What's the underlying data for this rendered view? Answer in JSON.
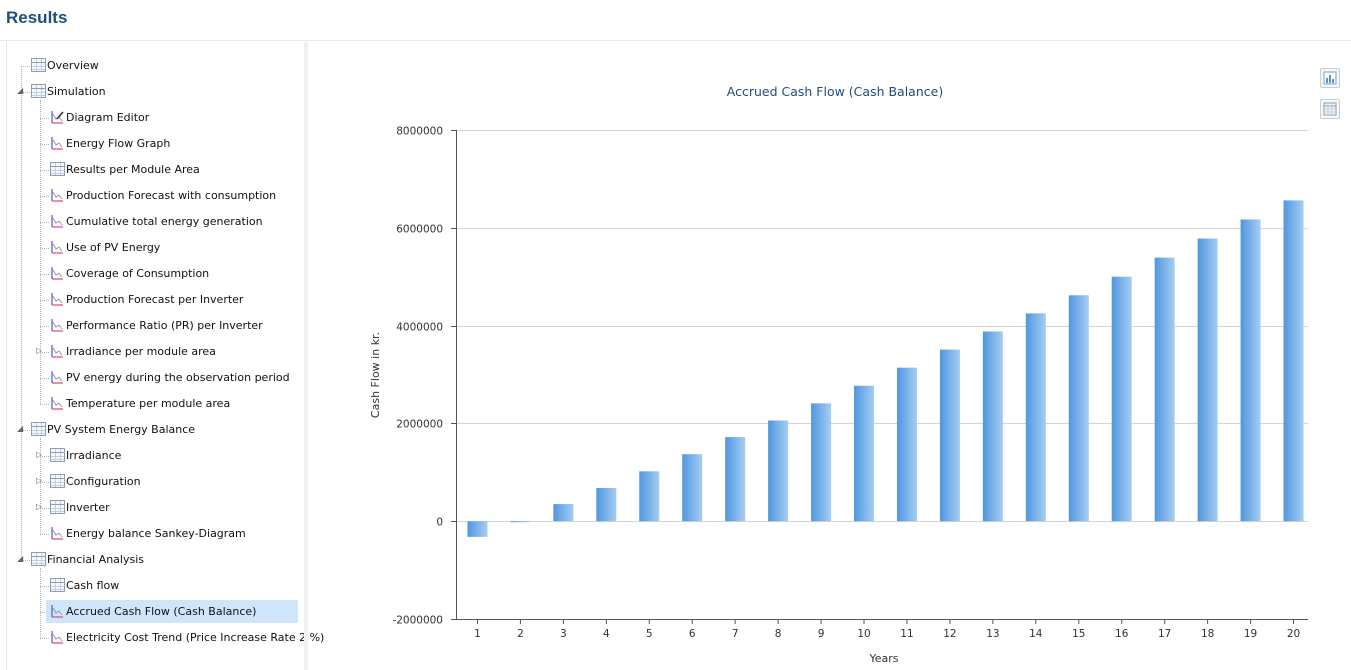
{
  "header": {
    "title": "Results"
  },
  "tree": {
    "items": [
      {
        "label": "Overview",
        "level": 0,
        "icon": "table",
        "expander": "",
        "lineStart": true
      },
      {
        "label": "Simulation",
        "level": 0,
        "icon": "table",
        "expander": "expanded"
      },
      {
        "label": "Diagram Editor",
        "level": 1,
        "icon": "chart-edit",
        "expander": ""
      },
      {
        "label": "Energy Flow Graph",
        "level": 1,
        "icon": "chart",
        "expander": ""
      },
      {
        "label": "Results per Module Area",
        "level": 1,
        "icon": "table",
        "expander": ""
      },
      {
        "label": "Production Forecast with consumption",
        "level": 1,
        "icon": "chart",
        "expander": ""
      },
      {
        "label": "Cumulative total energy generation",
        "level": 1,
        "icon": "chart",
        "expander": ""
      },
      {
        "label": "Use of PV Energy",
        "level": 1,
        "icon": "chart",
        "expander": ""
      },
      {
        "label": "Coverage of Consumption",
        "level": 1,
        "icon": "chart",
        "expander": ""
      },
      {
        "label": "Production Forecast per Inverter",
        "level": 1,
        "icon": "chart",
        "expander": ""
      },
      {
        "label": "Performance Ratio (PR) per Inverter",
        "level": 1,
        "icon": "chart",
        "expander": ""
      },
      {
        "label": "Irradiance per module area",
        "level": 1,
        "icon": "chart",
        "expander": "collapsed"
      },
      {
        "label": "PV energy during the observation period",
        "level": 1,
        "icon": "chart",
        "expander": ""
      },
      {
        "label": "Temperature per module area",
        "level": 1,
        "icon": "chart",
        "expander": "",
        "last": true
      },
      {
        "label": "PV System Energy Balance",
        "level": 0,
        "icon": "table",
        "expander": "expanded"
      },
      {
        "label": "Irradiance",
        "level": 1,
        "icon": "table",
        "expander": "collapsed"
      },
      {
        "label": "Configuration",
        "level": 1,
        "icon": "table",
        "expander": "collapsed"
      },
      {
        "label": "Inverter",
        "level": 1,
        "icon": "table",
        "expander": "collapsed"
      },
      {
        "label": "Energy balance Sankey-Diagram",
        "level": 1,
        "icon": "chart",
        "expander": "",
        "last": true
      },
      {
        "label": "Financial Analysis",
        "level": 0,
        "icon": "table",
        "expander": "expanded",
        "last": true
      },
      {
        "label": "Cash flow",
        "level": 1,
        "icon": "table",
        "expander": ""
      },
      {
        "label": "Accrued Cash Flow (Cash Balance)",
        "level": 1,
        "icon": "chart",
        "expander": "",
        "selected": true
      },
      {
        "label": "Electricity Cost Trend (Price Increase Rate 2 %)",
        "level": 1,
        "icon": "chart",
        "expander": "",
        "last": true
      }
    ]
  },
  "colors": {
    "accent": "#1f4e79",
    "bar_dark": "#4f97e0",
    "bar_light": "#a6cdf2",
    "selection": "#cfe6fa"
  },
  "side_buttons": [
    {
      "icon": "chart-export-icon"
    },
    {
      "icon": "table-export-icon"
    }
  ],
  "chart_data": {
    "type": "bar",
    "title": "Accrued Cash Flow (Cash Balance)",
    "xlabel": "Years",
    "ylabel": "Cash Flow in kr.",
    "ylim": [
      -2000000,
      8000000
    ],
    "yticks": [
      -2000000,
      0,
      2000000,
      4000000,
      6000000,
      8000000
    ],
    "ytick_labels": [
      "-2000000",
      "0",
      "2000000",
      "4000000",
      "6000000",
      "8000000"
    ],
    "grid": true,
    "categories": [
      "1",
      "2",
      "3",
      "4",
      "5",
      "6",
      "7",
      "8",
      "9",
      "10",
      "11",
      "12",
      "13",
      "14",
      "15",
      "16",
      "17",
      "18",
      "19",
      "20"
    ],
    "values": [
      -320000,
      -20000,
      350000,
      680000,
      1020000,
      1370000,
      1720000,
      2060000,
      2410000,
      2770000,
      3140000,
      3510000,
      3880000,
      4250000,
      4620000,
      5000000,
      5390000,
      5780000,
      6170000,
      6560000
    ]
  }
}
